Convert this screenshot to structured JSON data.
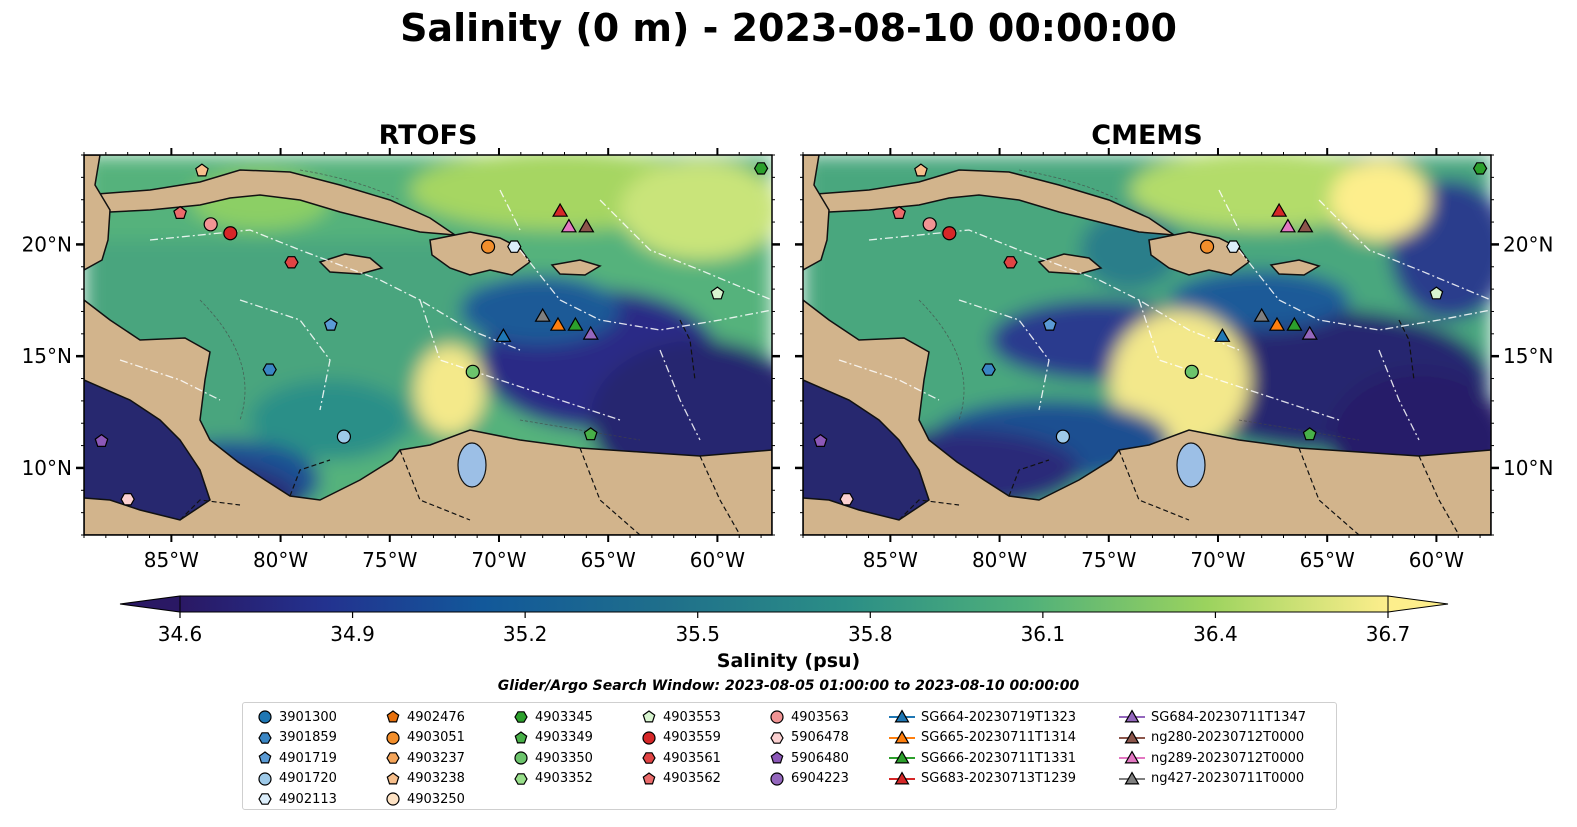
{
  "title": "Salinity (0 m) - 2023-08-10 00:00:00",
  "panels": [
    {
      "id": "rtofs",
      "title": "RTOFS"
    },
    {
      "id": "cmems",
      "title": "CMEMS"
    }
  ],
  "map": {
    "lon_range": [
      -89,
      -57.5
    ],
    "lat_range": [
      7,
      24
    ],
    "x_ticks": [
      "85°W",
      "80°W",
      "75°W",
      "70°W",
      "65°W",
      "60°W"
    ],
    "x_tick_values": [
      -85,
      -80,
      -75,
      -70,
      -65,
      -60
    ],
    "y_ticks": [
      "20°N",
      "15°N",
      "10°N"
    ],
    "y_tick_values": [
      20,
      15,
      10
    ],
    "land_color": "#d2b48c",
    "lake_color": "#9cbfe6",
    "bathymetry_contours": [
      "-100",
      "-1000"
    ]
  },
  "colorbar": {
    "label": "Salinity (psu)",
    "ticks": [
      "34.6",
      "34.9",
      "35.2",
      "35.5",
      "35.8",
      "36.1",
      "36.4",
      "36.7"
    ],
    "tick_values": [
      34.6,
      34.9,
      35.2,
      35.5,
      35.8,
      36.1,
      36.4,
      36.7
    ],
    "range": [
      34.6,
      36.7
    ],
    "extend": "both",
    "colormap": "haline"
  },
  "search_window": "Glider/Argo Search Window: 2023-08-05 01:00:00 to 2023-08-10 00:00:00",
  "legend": {
    "columns": [
      [
        {
          "label": "3901300",
          "marker": "circle",
          "color": "#1f77b4"
        },
        {
          "label": "3901859",
          "marker": "hexagon",
          "color": "#3a86c4"
        },
        {
          "label": "4901719",
          "marker": "pentagon",
          "color": "#5b9bd5"
        },
        {
          "label": "4901720",
          "marker": "circle",
          "color": "#9ecae9"
        },
        {
          "label": "4902113",
          "marker": "hexagon",
          "color": "#dceefb"
        }
      ],
      [
        {
          "label": "4902476",
          "marker": "pentagon",
          "color": "#e6700d"
        },
        {
          "label": "4903051",
          "marker": "circle",
          "color": "#f28e2b"
        },
        {
          "label": "4903237",
          "marker": "hexagon",
          "color": "#f5a55a"
        },
        {
          "label": "4903238",
          "marker": "pentagon",
          "color": "#f7bf8c"
        },
        {
          "label": "4903250",
          "marker": "circle",
          "color": "#fde2c4"
        }
      ],
      [
        {
          "label": "4903345",
          "marker": "hexagon",
          "color": "#2ca02c"
        },
        {
          "label": "4903349",
          "marker": "pentagon",
          "color": "#48b048"
        },
        {
          "label": "4903350",
          "marker": "circle",
          "color": "#6cc46c"
        },
        {
          "label": "4903352",
          "marker": "hexagon",
          "color": "#98df8a"
        }
      ],
      [
        {
          "label": "4903553",
          "marker": "pentagon",
          "color": "#d8f5d0"
        },
        {
          "label": "4903559",
          "marker": "circle",
          "color": "#d62728"
        },
        {
          "label": "4903561",
          "marker": "hexagon",
          "color": "#e04444"
        },
        {
          "label": "4903562",
          "marker": "pentagon",
          "color": "#eb6b6b"
        }
      ],
      [
        {
          "label": "4903563",
          "marker": "circle",
          "color": "#f19494"
        },
        {
          "label": "5906478",
          "marker": "hexagon",
          "color": "#fbd0d0"
        },
        {
          "label": "5906480",
          "marker": "pentagon",
          "color": "#8c58b8"
        },
        {
          "label": "6904223",
          "marker": "circle",
          "color": "#9467bd"
        }
      ],
      [
        {
          "label": "SG664-20230719T1323",
          "marker": "triangle-line",
          "color": "#1f77b4"
        },
        {
          "label": "SG665-20230711T1314",
          "marker": "triangle-line",
          "color": "#ff7f0e"
        },
        {
          "label": "SG666-20230711T1331",
          "marker": "triangle-line",
          "color": "#2ca02c"
        },
        {
          "label": "SG683-20230713T1239",
          "marker": "triangle-line",
          "color": "#d62728"
        }
      ],
      [
        {
          "label": "SG684-20230711T1347",
          "marker": "triangle-line",
          "color": "#9467bd"
        },
        {
          "label": "ng280-20230712T0000",
          "marker": "triangle-line",
          "color": "#8c564b"
        },
        {
          "label": "ng289-20230712T0000",
          "marker": "triangle-line",
          "color": "#e377c2"
        },
        {
          "label": "ng427-20230711T0000",
          "marker": "triangle-line",
          "color": "#7f7f7f"
        }
      ]
    ]
  },
  "markers": [
    {
      "id": "4903562",
      "lon": -84.6,
      "lat": 21.4,
      "marker": "pentagon",
      "color": "#eb6b6b"
    },
    {
      "id": "4903563",
      "lon": -83.2,
      "lat": 20.9,
      "marker": "circle",
      "color": "#f19494"
    },
    {
      "id": "4903559",
      "lon": -82.3,
      "lat": 20.5,
      "marker": "circle",
      "color": "#d62728"
    },
    {
      "id": "4903561",
      "lon": -79.5,
      "lat": 19.2,
      "marker": "hexagon",
      "color": "#e04444"
    },
    {
      "id": "4901719",
      "lon": -77.7,
      "lat": 16.4,
      "marker": "pentagon",
      "color": "#5b9bd5"
    },
    {
      "id": "3901859",
      "lon": -80.5,
      "lat": 14.4,
      "marker": "hexagon",
      "color": "#3a86c4"
    },
    {
      "id": "4901720",
      "lon": -77.1,
      "lat": 11.4,
      "marker": "circle",
      "color": "#9ecae9"
    },
    {
      "id": "5906480",
      "lon": -88.2,
      "lat": 11.2,
      "marker": "pentagon",
      "color": "#8c58b8"
    },
    {
      "id": "5906478",
      "lon": -87.0,
      "lat": 8.6,
      "marker": "hexagon",
      "color": "#fbd0d0"
    },
    {
      "id": "4903051",
      "lon": -70.5,
      "lat": 19.9,
      "marker": "circle",
      "color": "#f28e2b"
    },
    {
      "id": "4902113",
      "lon": -69.3,
      "lat": 19.9,
      "marker": "hexagon",
      "color": "#dceefb"
    },
    {
      "id": "4903350",
      "lon": -71.2,
      "lat": 14.3,
      "marker": "circle",
      "color": "#6cc46c"
    },
    {
      "id": "4903349",
      "lon": -65.8,
      "lat": 11.5,
      "marker": "pentagon",
      "color": "#48b048"
    },
    {
      "id": "4903553",
      "lon": -60.0,
      "lat": 17.8,
      "marker": "pentagon",
      "color": "#d8f5d0"
    },
    {
      "id": "4903345",
      "lon": -58.0,
      "lat": 23.4,
      "marker": "hexagon",
      "color": "#2ca02c"
    },
    {
      "id": "4903238",
      "lon": -83.6,
      "lat": 23.3,
      "marker": "pentagon",
      "color": "#f7bf8c"
    },
    {
      "id": "SG683-20230713T1239",
      "lon": -67.2,
      "lat": 21.5,
      "marker": "triangle",
      "color": "#d62728"
    },
    {
      "id": "ng289-20230712T0000",
      "lon": -66.8,
      "lat": 20.8,
      "marker": "triangle",
      "color": "#e377c2"
    },
    {
      "id": "ng280-20230712T0000",
      "lon": -66.0,
      "lat": 20.8,
      "marker": "triangle",
      "color": "#8c564b"
    },
    {
      "id": "ng427-20230711T0000",
      "lon": -68.0,
      "lat": 16.8,
      "marker": "triangle",
      "color": "#7f7f7f"
    },
    {
      "id": "SG665-20230711T1314",
      "lon": -67.3,
      "lat": 16.4,
      "marker": "triangle",
      "color": "#ff7f0e"
    },
    {
      "id": "SG666-20230711T1331",
      "lon": -66.5,
      "lat": 16.4,
      "marker": "triangle",
      "color": "#2ca02c"
    },
    {
      "id": "SG684-20230711T1347",
      "lon": -65.8,
      "lat": 16.0,
      "marker": "triangle",
      "color": "#9467bd"
    },
    {
      "id": "SG664-20230719T1323",
      "lon": -69.8,
      "lat": 15.9,
      "marker": "triangle",
      "color": "#1f77b4"
    }
  ]
}
